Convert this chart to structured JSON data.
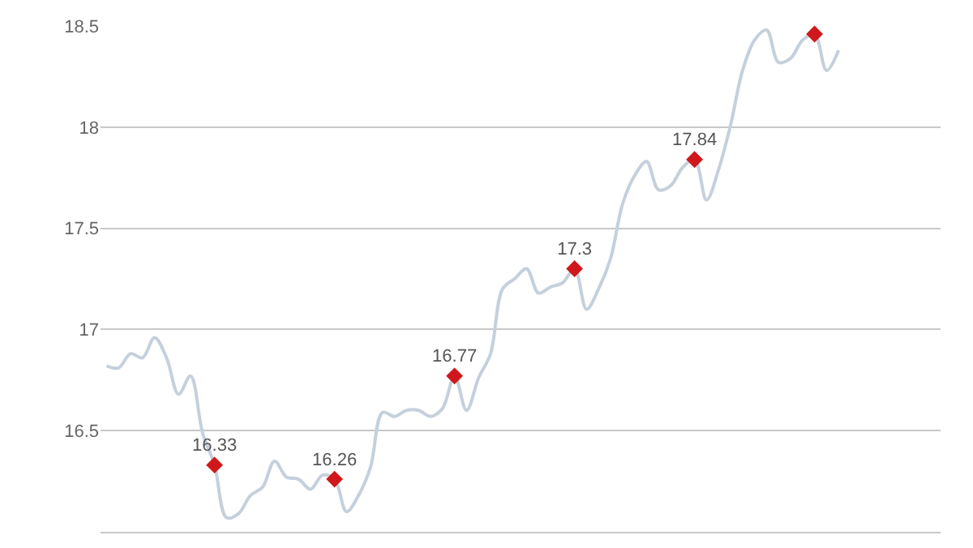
{
  "chart_data": {
    "type": "line",
    "categories": [
      null,
      null,
      null,
      null,
      null,
      null,
      null,
      null,
      null,
      null,
      null,
      null,
      null,
      null,
      null,
      null,
      null,
      null,
      null,
      null,
      null,
      null,
      null,
      null,
      null,
      null,
      null,
      null,
      null,
      null,
      null,
      null,
      null,
      null,
      null,
      null,
      null,
      null,
      null,
      null,
      null,
      null,
      null,
      null,
      null,
      null,
      null,
      null,
      null,
      null,
      null,
      null,
      null,
      null,
      null,
      null,
      null,
      null,
      null,
      null,
      null,
      null,
      null,
      null,
      null,
      null,
      null,
      null,
      null,
      null
    ],
    "series": [
      {
        "color": "#c5d0dc",
        "marker": "none",
        "line_style": "solid",
        "values": [
          16.82,
          16.81,
          16.88,
          16.86,
          16.96,
          16.86,
          16.68,
          16.77,
          16.49,
          16.33,
          16.07,
          16.09,
          16.18,
          16.22,
          16.35,
          16.27,
          16.26,
          16.21,
          16.28,
          16.26,
          16.1,
          16.18,
          16.32,
          16.59,
          16.57,
          16.6,
          16.6,
          16.57,
          16.61,
          16.77,
          16.6,
          16.76,
          16.88,
          17.2,
          17.25,
          17.3,
          17.18,
          17.21,
          17.23,
          17.3,
          17.1,
          17.2,
          17.35,
          17.62,
          17.76,
          17.83,
          17.69,
          17.71,
          17.8,
          17.84,
          17.64,
          17.79,
          18.01,
          18.28,
          18.43,
          18.48,
          18.32,
          18.34,
          18.43,
          18.46,
          18.28,
          18.38,
          null,
          null,
          null,
          null,
          null,
          null,
          null,
          null
        ]
      },
      {
        "type": "scatter",
        "color": "#d0181c",
        "marker": "diamond",
        "values": [
          null,
          null,
          null,
          null,
          null,
          null,
          null,
          null,
          null,
          16.33,
          null,
          null,
          null,
          null,
          null,
          null,
          null,
          null,
          null,
          16.26,
          null,
          null,
          null,
          null,
          null,
          null,
          null,
          null,
          null,
          16.77,
          null,
          null,
          null,
          null,
          null,
          null,
          null,
          null,
          null,
          17.3,
          null,
          null,
          null,
          null,
          null,
          null,
          null,
          null,
          null,
          17.84,
          null,
          null,
          null,
          null,
          null,
          null,
          null,
          null,
          null,
          18.46,
          null,
          null,
          null,
          null,
          null,
          null,
          null,
          null,
          null,
          null
        ],
        "value_labels": [
          null,
          null,
          null,
          null,
          null,
          null,
          null,
          null,
          null,
          "16.33",
          null,
          null,
          null,
          null,
          null,
          null,
          null,
          null,
          null,
          "16.26",
          null,
          null,
          null,
          null,
          null,
          null,
          null,
          null,
          null,
          "16.77",
          null,
          null,
          null,
          null,
          null,
          null,
          null,
          null,
          null,
          "17.3",
          null,
          null,
          null,
          null,
          null,
          null,
          null,
          null,
          null,
          "17.84",
          null,
          null,
          null,
          null,
          null,
          null,
          null,
          null,
          null,
          null,
          null,
          null,
          null,
          null,
          null,
          null,
          null,
          null,
          null,
          null
        ]
      }
    ],
    "ylim": [
      16.0,
      18.5
    ],
    "yticks": [
      16.5,
      17,
      17.5,
      18,
      18.5
    ],
    "grid": "y",
    "tick_labels": "y"
  }
}
